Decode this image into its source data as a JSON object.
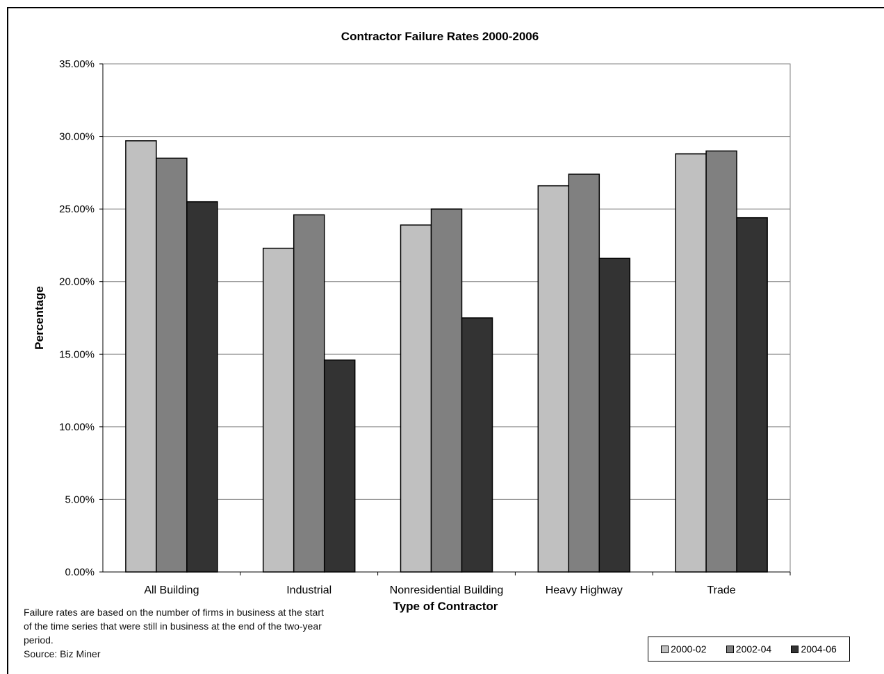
{
  "chart_data": {
    "type": "bar",
    "title": "Contractor Failure Rates 2000-2006",
    "xlabel": "Type of Contractor",
    "ylabel": "Percentage",
    "categories": [
      "All Building",
      "Industrial",
      "Nonresidential Building",
      "Heavy Highway",
      "Trade"
    ],
    "series": [
      {
        "name": "2000-02",
        "color": "#c0c0c0",
        "values": [
          29.7,
          22.3,
          23.9,
          26.6,
          28.8
        ]
      },
      {
        "name": "2002-04",
        "color": "#808080",
        "values": [
          28.5,
          24.6,
          25.0,
          27.4,
          29.0
        ]
      },
      {
        "name": "2004-06",
        "color": "#333333",
        "values": [
          25.5,
          14.6,
          17.5,
          21.6,
          24.4
        ]
      }
    ],
    "ylim": [
      0,
      35
    ],
    "yticks": [
      "0.00%",
      "5.00%",
      "10.00%",
      "15.00%",
      "20.00%",
      "25.00%",
      "30.00%",
      "35.00%"
    ],
    "grid": true,
    "legend_position": "bottom-right"
  },
  "footnote": {
    "lines": [
      "Failure rates are based on the number of firms in business at the start",
      "of the time series that were still in business at the end of the two-year",
      "period."
    ],
    "source": "Source: Biz Miner"
  }
}
